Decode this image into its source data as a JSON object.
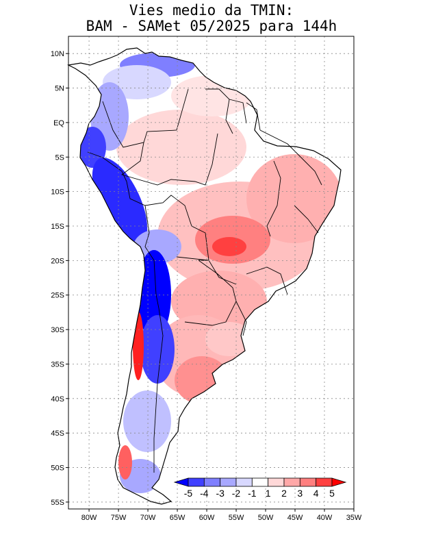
{
  "title": {
    "line1": "Vies medio da TMIN:",
    "line2": "BAM - SAMet 05/2025  para 144h"
  },
  "axes": {
    "lat_labels": [
      "10N",
      "5N",
      "EQ",
      "5S",
      "10S",
      "15S",
      "20S",
      "25S",
      "30S",
      "35S",
      "40S",
      "45S",
      "50S",
      "55S"
    ],
    "lat_values": [
      10,
      5,
      0,
      -5,
      -10,
      -15,
      -20,
      -25,
      -30,
      -35,
      -40,
      -45,
      -50,
      -55
    ],
    "lon_labels": [
      "80W",
      "75W",
      "70W",
      "65W",
      "60W",
      "55W",
      "50W",
      "45W",
      "40W",
      "35W"
    ],
    "lon_values": [
      -80,
      -75,
      -70,
      -65,
      -60,
      -55,
      -50,
      -45,
      -40,
      -35
    ],
    "lat_range": [
      -56,
      12.5
    ],
    "lon_range": [
      -83.5,
      -35
    ]
  },
  "colorbar": {
    "labels": [
      "-5",
      "-4",
      "-3",
      "-2",
      "-1",
      "1",
      "2",
      "3",
      "4",
      "5"
    ],
    "colors": [
      "#0000ff",
      "#4040ff",
      "#7f7fff",
      "#a8a8ff",
      "#d8d8ff",
      "#ffffff",
      "#ffd8d8",
      "#ffa8a8",
      "#ff7f7f",
      "#ff4040",
      "#ff0000"
    ]
  },
  "colors": {
    "strong_cold": "#0000ff",
    "cold": "#5a5aff",
    "light_cold": "#a8a8ff",
    "light_warm": "#ffd8d8",
    "warm": "#ffa8a8",
    "strong_warm": "#ff4040"
  }
}
